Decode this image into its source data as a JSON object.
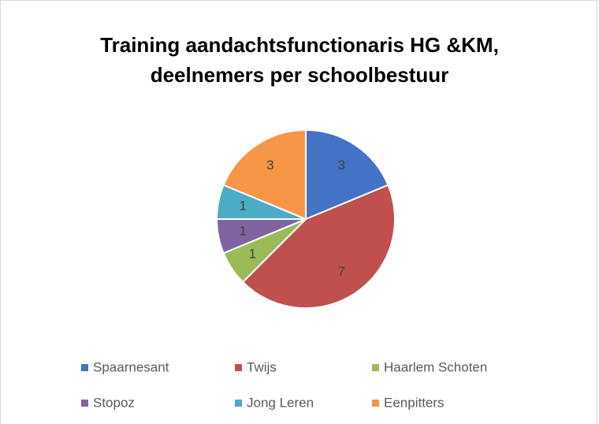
{
  "chart_data": {
    "type": "pie",
    "title": "Training aandachtsfunctionaris HG &KM, deelnemers per schoolbestuur",
    "categories": [
      "Spaarnesant",
      "Twijs",
      "Haarlem Schoten",
      "Stopoz",
      "Jong Leren",
      "Eenpitters"
    ],
    "values": [
      3,
      7,
      1,
      1,
      1,
      3
    ],
    "colors": [
      "#4472c4",
      "#c0504d",
      "#9bbb59",
      "#8064a2",
      "#4bacc6",
      "#f79646"
    ],
    "legend": "bottom"
  }
}
